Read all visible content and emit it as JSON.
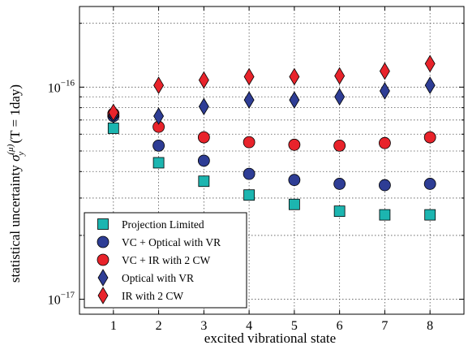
{
  "chart_data": {
    "type": "scatter",
    "xlabel": "excited vibrational state",
    "ylabel": {
      "prefix": "statistical uncertainty ",
      "sigma": "σ",
      "sub": "y",
      "sup": "(μ)",
      "paren": " (T = 1day)"
    },
    "yscale": "log",
    "xlim": [
      0.25,
      8.75
    ],
    "ylim": [
      8.5e-18,
      2.4e-16
    ],
    "grid": true,
    "legend_position": "lower-left",
    "x_ticks": [
      {
        "value": 1,
        "label": "1"
      },
      {
        "value": 2,
        "label": "2"
      },
      {
        "value": 3,
        "label": "3"
      },
      {
        "value": 4,
        "label": "4"
      },
      {
        "value": 5,
        "label": "5"
      },
      {
        "value": 6,
        "label": "6"
      },
      {
        "value": 7,
        "label": "7"
      },
      {
        "value": 8,
        "label": "8"
      }
    ],
    "y_ticks": [
      {
        "value": 1e-17,
        "base": "10",
        "exp": "−17"
      },
      {
        "value": 1e-16,
        "base": "10",
        "exp": "−16"
      }
    ],
    "y_minor_grid": [
      2e-17,
      3e-17,
      4e-17,
      5e-17,
      6e-17,
      7e-17,
      8e-17,
      9e-17,
      2e-16
    ],
    "x": [
      1,
      2,
      3,
      4,
      5,
      6,
      7,
      8
    ],
    "series": [
      {
        "name": "Projection Limited",
        "marker": "square",
        "color": "#1cb5b0",
        "values": [
          6.4e-17,
          4.4e-17,
          3.6e-17,
          3.1e-17,
          2.8e-17,
          2.6e-17,
          2.5e-17,
          2.5e-17
        ]
      },
      {
        "name": "VC + Optical with VR",
        "marker": "circle",
        "color": "#2e3d95",
        "values": [
          7.3e-17,
          5.3e-17,
          4.5e-17,
          3.9e-17,
          3.65e-17,
          3.5e-17,
          3.45e-17,
          3.5e-17
        ]
      },
      {
        "name": "VC + IR with 2 CW",
        "marker": "circle",
        "color": "#e8232b",
        "values": [
          7.5e-17,
          6.5e-17,
          5.8e-17,
          5.5e-17,
          5.35e-17,
          5.3e-17,
          5.45e-17,
          5.8e-17
        ]
      },
      {
        "name": "Optical with VR",
        "marker": "diamond",
        "color": "#2e3d95",
        "values": [
          7.4e-17,
          7.3e-17,
          8.1e-17,
          8.7e-17,
          8.7e-17,
          9e-17,
          9.6e-17,
          1.02e-16
        ]
      },
      {
        "name": "IR with 2 CW",
        "marker": "diamond",
        "color": "#e8232b",
        "values": [
          7.6e-17,
          1.02e-16,
          1.08e-16,
          1.12e-16,
          1.12e-16,
          1.13e-16,
          1.19e-16,
          1.29e-16
        ]
      }
    ]
  }
}
